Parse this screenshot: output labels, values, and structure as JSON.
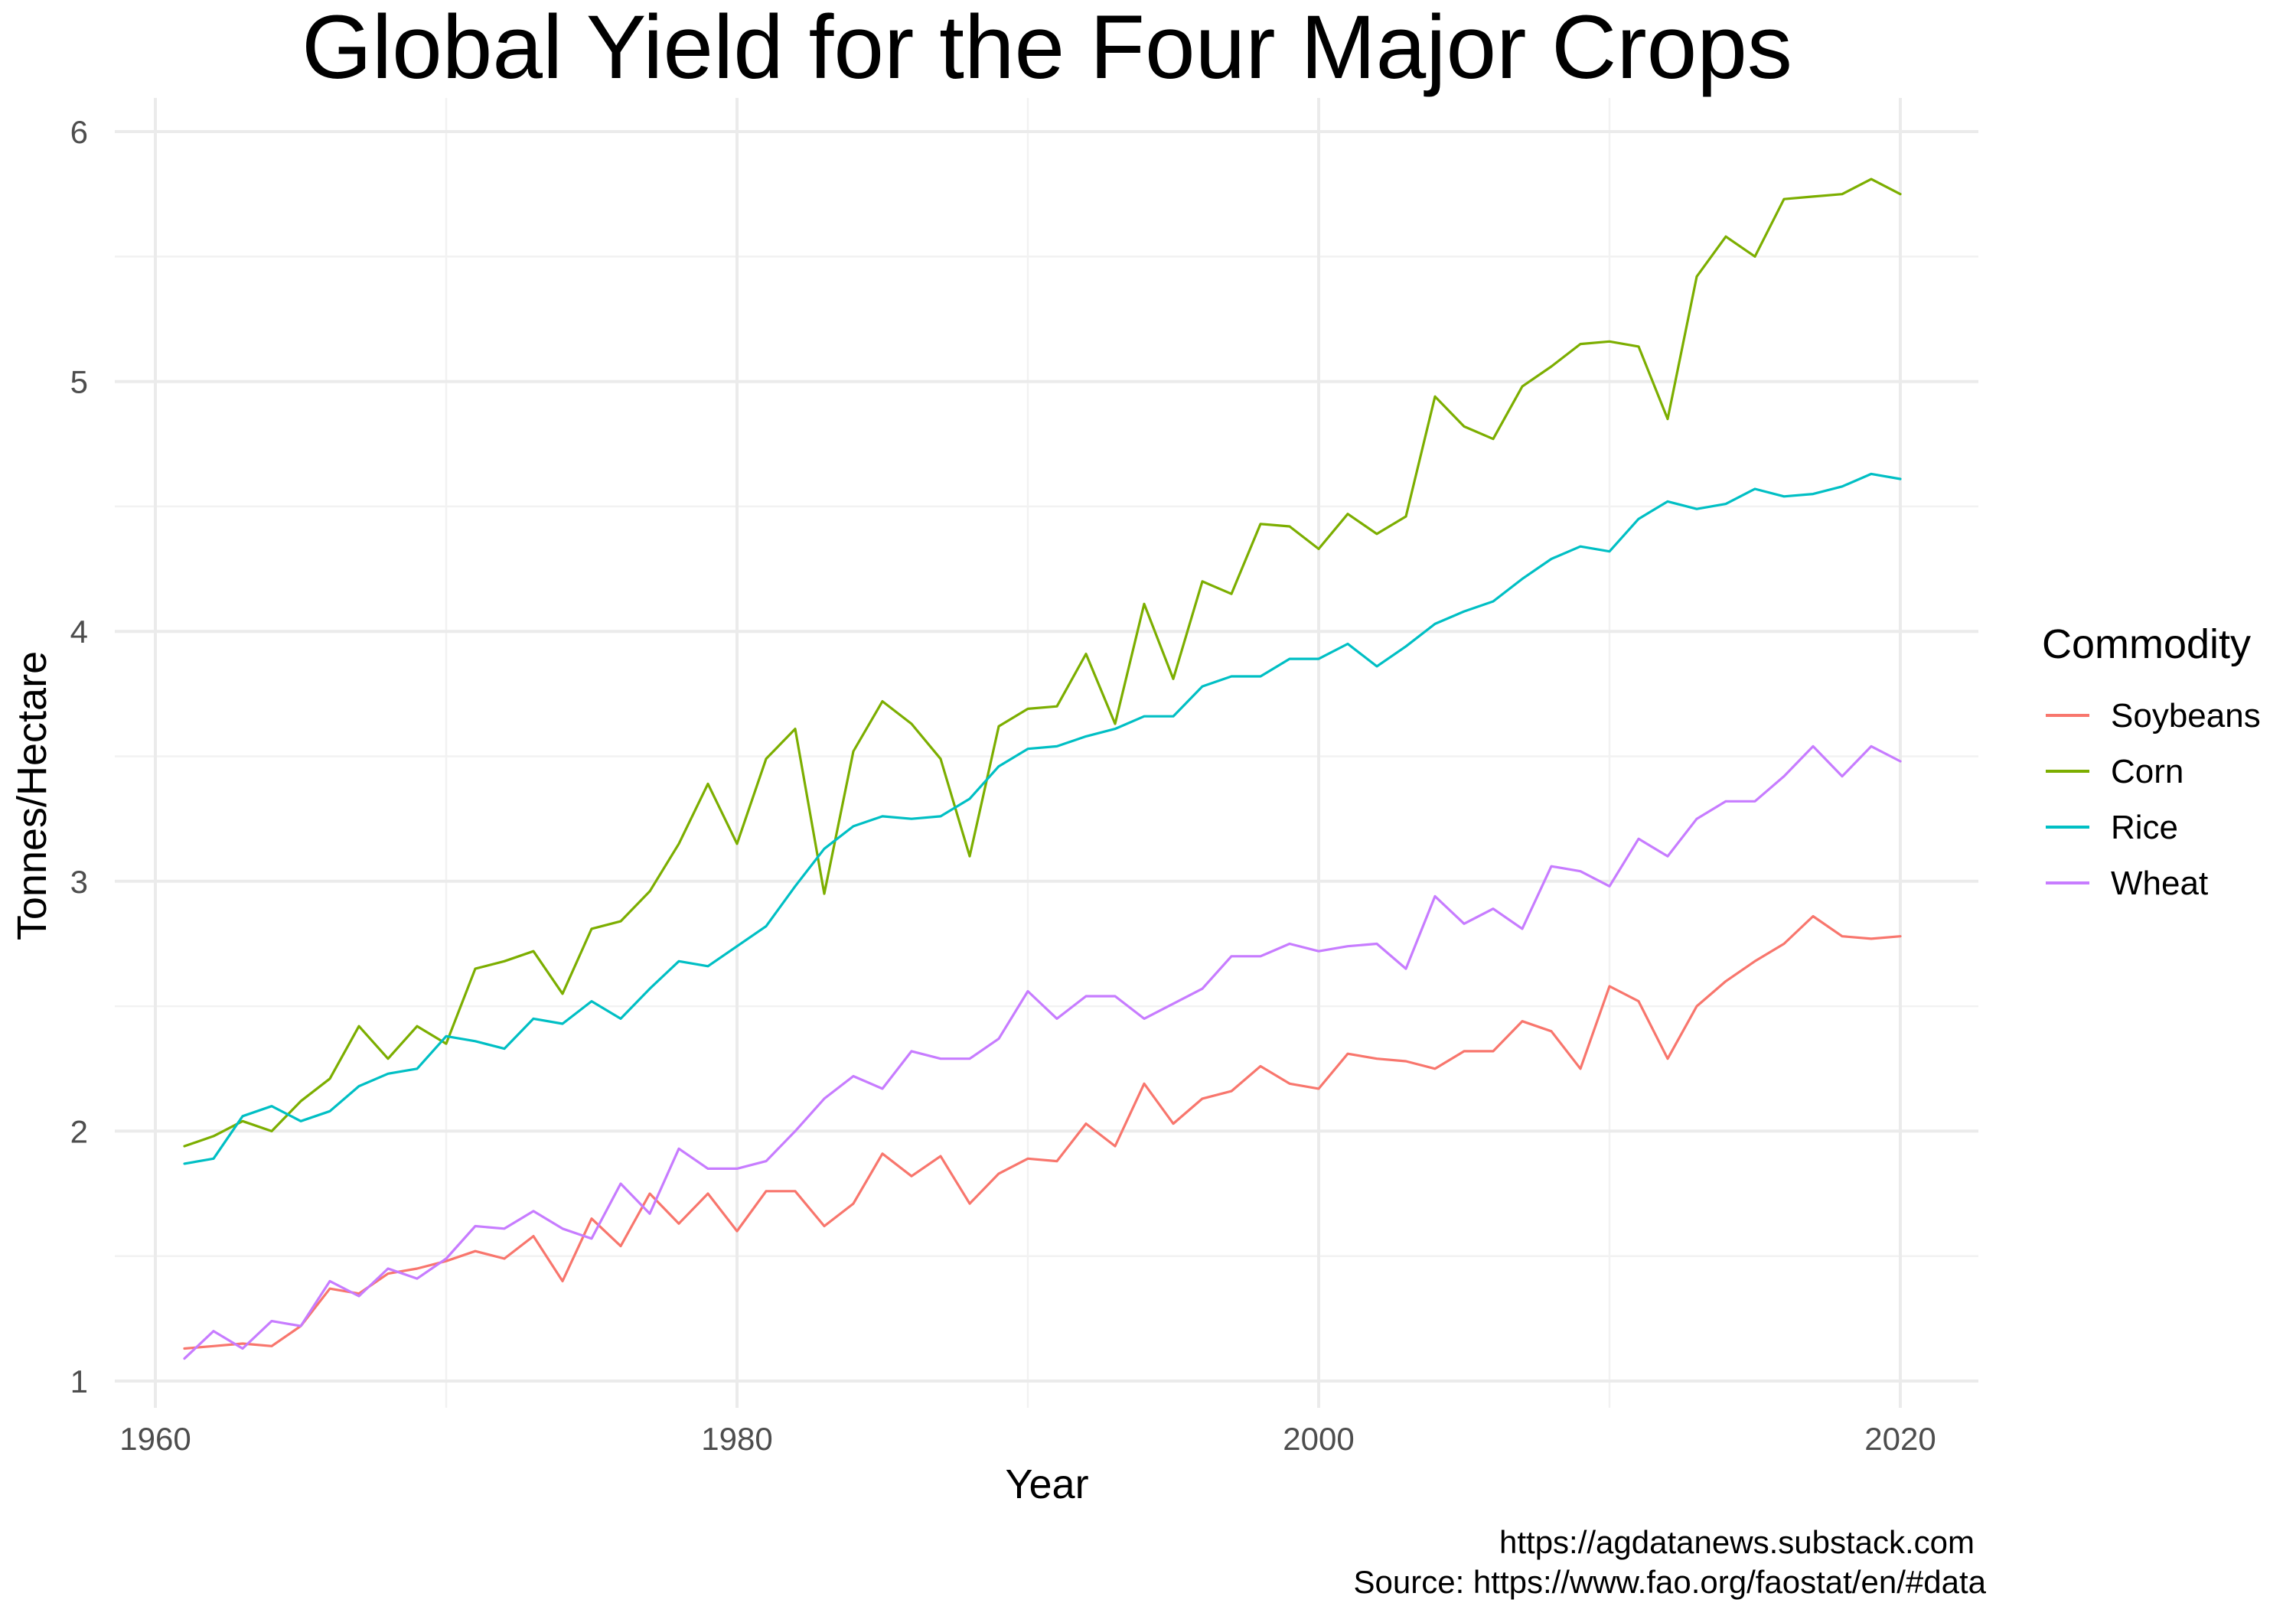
{
  "chart_data": {
    "type": "line",
    "title": "Global Yield for the Four Major Crops",
    "xlabel": "Year",
    "ylabel": "Tonnes/Hectare",
    "xlim": [
      1960,
      2020
    ],
    "ylim": [
      1,
      6
    ],
    "x_ticks": [
      "1960",
      "1980",
      "2000",
      "2020"
    ],
    "y_ticks": [
      "1",
      "2",
      "3",
      "4",
      "5",
      "6"
    ],
    "legend": {
      "title": "Commodity",
      "position": "right"
    },
    "captions": [
      "https://agdatanews.substack.com",
      "Source: https://www.fao.org/faostat/en/#data"
    ],
    "x": [
      1961,
      1962,
      1963,
      1964,
      1965,
      1966,
      1967,
      1968,
      1969,
      1970,
      1971,
      1972,
      1973,
      1974,
      1975,
      1976,
      1977,
      1978,
      1979,
      1980,
      1981,
      1982,
      1983,
      1984,
      1985,
      1986,
      1987,
      1988,
      1989,
      1990,
      1991,
      1992,
      1993,
      1994,
      1995,
      1996,
      1997,
      1998,
      1999,
      2000,
      2001,
      2002,
      2003,
      2004,
      2005,
      2006,
      2007,
      2008,
      2009,
      2010,
      2011,
      2012,
      2013,
      2014,
      2015,
      2016,
      2017,
      2018,
      2019,
      2020
    ],
    "series": [
      {
        "name": "Soybeans",
        "color": "#F8766D",
        "values": [
          1.13,
          1.14,
          1.15,
          1.14,
          1.22,
          1.37,
          1.35,
          1.43,
          1.45,
          1.48,
          1.52,
          1.49,
          1.58,
          1.4,
          1.65,
          1.54,
          1.75,
          1.63,
          1.75,
          1.6,
          1.76,
          1.76,
          1.62,
          1.71,
          1.91,
          1.82,
          1.9,
          1.71,
          1.83,
          1.89,
          1.88,
          2.03,
          1.94,
          2.19,
          2.03,
          2.13,
          2.16,
          2.26,
          2.19,
          2.17,
          2.31,
          2.29,
          2.28,
          2.25,
          2.32,
          2.32,
          2.44,
          2.4,
          2.25,
          2.58,
          2.52,
          2.29,
          2.5,
          2.6,
          2.68,
          2.75,
          2.86,
          2.78,
          2.77,
          2.78
        ]
      },
      {
        "name": "Corn",
        "color": "#7CAE00",
        "values": [
          1.94,
          1.98,
          2.04,
          2.0,
          2.12,
          2.21,
          2.42,
          2.29,
          2.42,
          2.35,
          2.65,
          2.68,
          2.72,
          2.55,
          2.81,
          2.84,
          2.96,
          3.15,
          3.39,
          3.15,
          3.49,
          3.61,
          2.95,
          3.52,
          3.72,
          3.63,
          3.49,
          3.1,
          3.62,
          3.69,
          3.7,
          3.91,
          3.63,
          4.11,
          3.81,
          4.2,
          4.15,
          4.43,
          4.42,
          4.33,
          4.47,
          4.39,
          4.46,
          4.94,
          4.82,
          4.77,
          4.98,
          5.06,
          5.15,
          5.16,
          5.14,
          4.85,
          5.42,
          5.58,
          5.5,
          5.73,
          5.74,
          5.75,
          5.81,
          5.75
        ]
      },
      {
        "name": "Rice",
        "color": "#00BFC4",
        "values": [
          1.87,
          1.89,
          2.06,
          2.1,
          2.04,
          2.08,
          2.18,
          2.23,
          2.25,
          2.38,
          2.36,
          2.33,
          2.45,
          2.43,
          2.52,
          2.45,
          2.57,
          2.68,
          2.66,
          2.74,
          2.82,
          2.98,
          3.13,
          3.22,
          3.26,
          3.25,
          3.26,
          3.33,
          3.46,
          3.53,
          3.54,
          3.58,
          3.61,
          3.66,
          3.66,
          3.78,
          3.82,
          3.82,
          3.89,
          3.89,
          3.95,
          3.86,
          3.94,
          4.03,
          4.08,
          4.12,
          4.21,
          4.29,
          4.34,
          4.32,
          4.45,
          4.52,
          4.49,
          4.51,
          4.57,
          4.54,
          4.55,
          4.58,
          4.63,
          4.61
        ]
      },
      {
        "name": "Wheat",
        "color": "#C77CFF",
        "values": [
          1.09,
          1.2,
          1.13,
          1.24,
          1.22,
          1.4,
          1.34,
          1.45,
          1.41,
          1.49,
          1.62,
          1.61,
          1.68,
          1.61,
          1.57,
          1.79,
          1.67,
          1.93,
          1.85,
          1.85,
          1.88,
          2.0,
          2.13,
          2.22,
          2.17,
          2.32,
          2.29,
          2.29,
          2.37,
          2.56,
          2.45,
          2.54,
          2.54,
          2.45,
          2.51,
          2.57,
          2.7,
          2.7,
          2.75,
          2.72,
          2.74,
          2.75,
          2.65,
          2.94,
          2.83,
          2.89,
          2.81,
          3.06,
          3.04,
          2.98,
          3.17,
          3.1,
          3.25,
          3.32,
          3.32,
          3.42,
          3.54,
          3.42,
          3.54,
          3.48
        ]
      }
    ]
  }
}
